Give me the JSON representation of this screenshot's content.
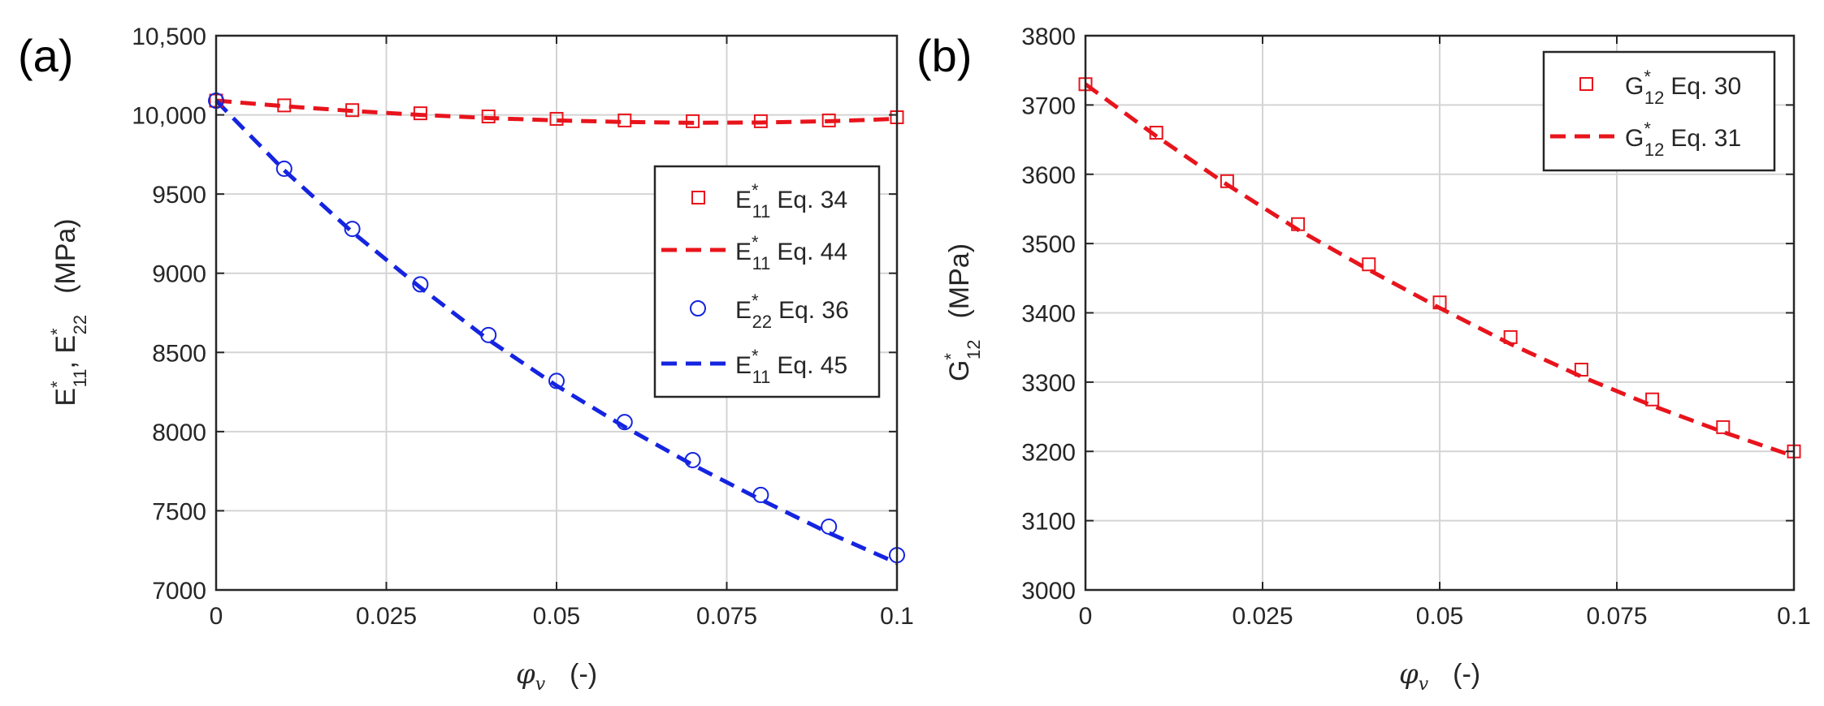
{
  "colors": {
    "red": "#e8141c",
    "blue": "#1424e0",
    "axis": "#262626",
    "grid": "#d4d4d4"
  },
  "chart_data": [
    {
      "panel_label": "(a)",
      "type": "line",
      "xlabel": "φ",
      "xlabel_sub": "v",
      "xlabel_units": "(-)",
      "ylabel_parts": {
        "e1": "E",
        "e1_sup": "*",
        "e1_sub": "11",
        "sep": ", ",
        "e2": "E",
        "e2_sup": "*",
        "e2_sub": "22",
        "units": "(MPa)"
      },
      "xlim": [
        0,
        0.1
      ],
      "ylim": [
        7000,
        10500
      ],
      "x_ticks": [
        0,
        0.025,
        0.05,
        0.075,
        0.1
      ],
      "x_tick_labels": [
        "0",
        "0.025",
        "0.05",
        "0.075",
        "0.1"
      ],
      "y_ticks": [
        7000,
        7500,
        8000,
        8500,
        9000,
        9500,
        10000,
        10500
      ],
      "y_tick_labels": [
        "7000",
        "7500",
        "8000",
        "8500",
        "9000",
        "9500",
        "10,000",
        "10,500"
      ],
      "grid": true,
      "legend_position": "right-middle",
      "series": [
        {
          "name": "E*11 Eq. 34",
          "label_main": "E",
          "label_sup": "*",
          "label_sub": "11",
          "label_eq": "Eq. 34",
          "style": "square-markers",
          "color": "#e8141c",
          "x": [
            0,
            0.01,
            0.02,
            0.03,
            0.04,
            0.05,
            0.06,
            0.07,
            0.08,
            0.09,
            0.1
          ],
          "y": [
            10090,
            10060,
            10030,
            10010,
            9990,
            9975,
            9965,
            9960,
            9960,
            9965,
            9985
          ]
        },
        {
          "name": "E*11 Eq. 44",
          "label_main": "E",
          "label_sup": "*",
          "label_sub": "11",
          "label_eq": "Eq. 44",
          "style": "dashed-line",
          "color": "#e8141c",
          "x": [
            0,
            0.01,
            0.02,
            0.03,
            0.04,
            0.05,
            0.06,
            0.07,
            0.08,
            0.09,
            0.1
          ],
          "y": [
            10090,
            10055,
            10025,
            10000,
            9980,
            9965,
            9955,
            9950,
            9952,
            9960,
            9975
          ]
        },
        {
          "name": "E*22 Eq. 36",
          "label_main": "E",
          "label_sup": "*",
          "label_sub": "22",
          "label_eq": "Eq. 36",
          "style": "circle-markers",
          "color": "#1424e0",
          "x": [
            0,
            0.01,
            0.02,
            0.03,
            0.04,
            0.05,
            0.06,
            0.07,
            0.08,
            0.09,
            0.1
          ],
          "y": [
            10090,
            9660,
            9280,
            8930,
            8610,
            8320,
            8060,
            7820,
            7600,
            7400,
            7220
          ]
        },
        {
          "name": "E*11 Eq. 45",
          "label_main": "E",
          "label_sup": "*",
          "label_sub": "11",
          "label_eq": "Eq. 45",
          "style": "dashed-line",
          "color": "#1424e0",
          "x": [
            0,
            0.01,
            0.02,
            0.03,
            0.04,
            0.05,
            0.06,
            0.07,
            0.08,
            0.09,
            0.1
          ],
          "y": [
            10090,
            9650,
            9260,
            8910,
            8580,
            8290,
            8030,
            7790,
            7570,
            7360,
            7170
          ]
        }
      ]
    },
    {
      "panel_label": "(b)",
      "type": "line",
      "xlabel": "φ",
      "xlabel_sub": "v",
      "xlabel_units": "(-)",
      "ylabel_parts": {
        "main": "G",
        "sup": "*",
        "sub": "12",
        "units": "(MPa)"
      },
      "xlim": [
        0,
        0.1
      ],
      "ylim": [
        3000,
        3800
      ],
      "x_ticks": [
        0,
        0.025,
        0.05,
        0.075,
        0.1
      ],
      "x_tick_labels": [
        "0",
        "0.025",
        "0.05",
        "0.075",
        "0.1"
      ],
      "y_ticks": [
        3000,
        3100,
        3200,
        3300,
        3400,
        3500,
        3600,
        3700,
        3800
      ],
      "y_tick_labels": [
        "3000",
        "3100",
        "3200",
        "3300",
        "3400",
        "3500",
        "3600",
        "3700",
        "3800"
      ],
      "grid": true,
      "legend_position": "top-right",
      "series": [
        {
          "name": "G*12 Eq. 30",
          "label_main": "G",
          "label_sup": "*",
          "label_sub": "12",
          "label_eq": "Eq. 30",
          "style": "square-markers",
          "color": "#e8141c",
          "x": [
            0,
            0.01,
            0.02,
            0.03,
            0.04,
            0.05,
            0.06,
            0.07,
            0.08,
            0.09,
            0.1
          ],
          "y": [
            3730,
            3660,
            3590,
            3528,
            3470,
            3415,
            3365,
            3318,
            3275,
            3235,
            3200
          ]
        },
        {
          "name": "G*12 Eq. 31",
          "label_main": "G",
          "label_sup": "*",
          "label_sub": "12",
          "label_eq": "Eq. 31",
          "style": "dashed-line",
          "color": "#e8141c",
          "x": [
            0,
            0.01,
            0.02,
            0.03,
            0.04,
            0.05,
            0.06,
            0.07,
            0.08,
            0.09,
            0.1
          ],
          "y": [
            3730,
            3655,
            3585,
            3520,
            3462,
            3407,
            3355,
            3308,
            3266,
            3228,
            3193
          ]
        }
      ]
    }
  ]
}
